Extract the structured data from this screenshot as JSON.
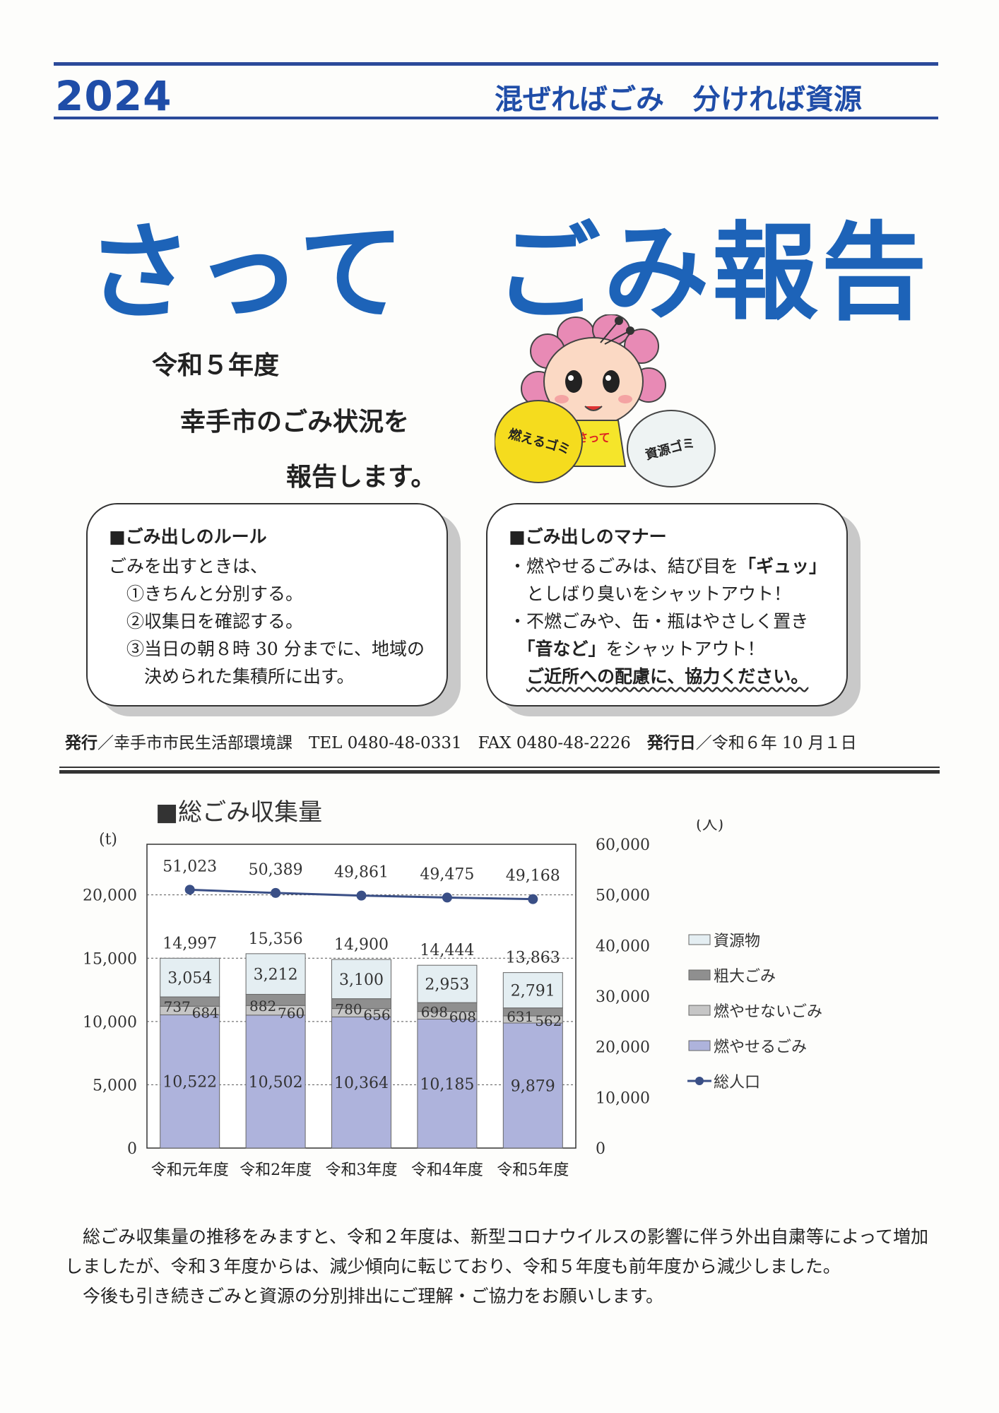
{
  "header": {
    "year": "2024",
    "slogan": "混ぜればごみ　分ければ資源"
  },
  "title": {
    "left": "さって",
    "right": "ごみ報告"
  },
  "intro": {
    "line1": "令和５年度",
    "line2": "幸手市のごみ状況を",
    "line3": "報告します。"
  },
  "mascot": {
    "name_on_body": "さって",
    "bag_left": "燃えるゴミ",
    "bag_right": "資源ゴミ"
  },
  "rules": {
    "title": "■ごみ出しのルール",
    "lines": [
      "ごみを出すときは、",
      "　①きちんと分別する。",
      "　②収集日を確認する。",
      "　③当日の朝８時 30 分までに、地域の",
      "　　決められた集積所に出す。"
    ]
  },
  "manners": {
    "title": "■ごみ出しのマナー",
    "line1_pre": "・燃やせるごみは、結び目を",
    "line1_bold": "「ギュッ」",
    "line2": "　としばり臭いをシャットアウト！",
    "line3": "・不燃ごみや、缶・瓶はやさしく置き",
    "line4_bold": "「音など」",
    "line4_post": "をシャットアウト！",
    "line5": "ご近所への配慮に、協力ください。"
  },
  "publisher": {
    "issuer_label": "発行",
    "issuer": "／幸手市市民生活部環境課　TEL 0480-48-0331　FAX 0480-48-2226",
    "date_label": "発行日",
    "date": "／令和６年 10 月１日"
  },
  "chart_section_title": "■総ごみ収集量",
  "chart_data": {
    "type": "bar",
    "stacked": true,
    "categories": [
      "令和元年度",
      "令和2年度",
      "令和3年度",
      "令和4年度",
      "令和5年度"
    ],
    "left_axis_unit": "(t)",
    "right_axis_unit": "(人)",
    "ylim": [
      0,
      20000
    ],
    "yticks": [
      "0",
      "5,000",
      "10,000",
      "15,000",
      "20,000"
    ],
    "y2lim": [
      0,
      60000
    ],
    "y2ticks": [
      "0",
      "10,000",
      "20,000",
      "30,000",
      "40,000",
      "50,000",
      "60,000"
    ],
    "series": [
      {
        "name": "燃やせるごみ",
        "values": [
          10522,
          10502,
          10364,
          10185,
          9879
        ],
        "labels": [
          "10,522",
          "10,502",
          "10,364",
          "10,185",
          "9,879"
        ],
        "color": "#aeb3dc"
      },
      {
        "name": "燃やせないごみ",
        "values": [
          684,
          760,
          656,
          608,
          562
        ],
        "labels": [
          "684",
          "760",
          "656",
          "608",
          "562"
        ],
        "color": "#c6c6c6"
      },
      {
        "name": "粗大ごみ",
        "values": [
          737,
          882,
          780,
          698,
          631
        ],
        "labels": [
          "737",
          "882",
          "780",
          "698",
          "631"
        ],
        "color": "#8f8f8f"
      },
      {
        "name": "資源物",
        "values": [
          3054,
          3212,
          3100,
          2953,
          2791
        ],
        "labels": [
          "3,054",
          "3,212",
          "3,100",
          "2,953",
          "2,791"
        ],
        "color": "#e4eef2"
      }
    ],
    "totals": [
      "14,997",
      "15,356",
      "14,900",
      "14,444",
      "13,863"
    ],
    "line_series": {
      "name": "総人口",
      "axis": "right",
      "values": [
        51023,
        50389,
        49861,
        49475,
        49168
      ],
      "labels": [
        "51,023",
        "50,389",
        "49,861",
        "49,475",
        "49,168"
      ],
      "color": "#3a4f86"
    },
    "legend_order": [
      "資源物",
      "粗大ごみ",
      "燃やせないごみ",
      "燃やせるごみ",
      "総人口"
    ],
    "legend_position": "right",
    "grid": true
  },
  "summary": {
    "line1": "　総ごみ収集量の推移をみますと、令和２年度は、新型コロナウイルスの影響に伴う外出自粛等によって増加しましたが、令和３年度からは、減少傾向に転じており、令和５年度も前年度から減少しました。",
    "line2": "　今後も引き続きごみと資源の分別排出にご理解・ご協力をお願いします。"
  }
}
